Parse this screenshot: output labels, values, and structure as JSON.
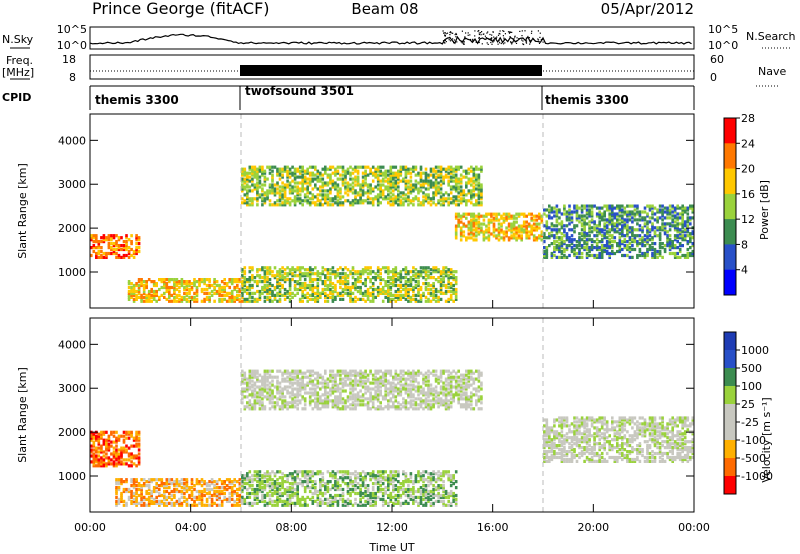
{
  "header": {
    "station": "Prince George (fitACF)",
    "beam": "Beam 08",
    "date": "05/Apr/2012"
  },
  "summary_panels": {
    "nsky_label": "N.Sky",
    "nsky_ticks": [
      "10^5",
      "10^0"
    ],
    "nsearch_label": "N.Search",
    "nsearch_ticks": [
      "10^5",
      "10^0"
    ],
    "freq_label_line1": "Freq.",
    "freq_label_line2": "[MHz]",
    "freq_ticks": [
      "18",
      "8"
    ],
    "nave_label": "Nave",
    "nave_ticks": [
      "60",
      "0"
    ],
    "cpid_label": "CPID",
    "cpid_segments": [
      {
        "name": "themis 3300",
        "start_h": 0,
        "end_h": 6
      },
      {
        "name": "twofsound 3501",
        "start_h": 6,
        "end_h": 18
      },
      {
        "name": "themis 3300",
        "start_h": 18,
        "end_h": 24
      }
    ]
  },
  "chart_data": [
    {
      "type": "heatmap",
      "name": "power",
      "ylabel": "Slant Range [km]",
      "ylim": [
        180,
        4600
      ],
      "yticks": [
        "1000",
        "2000",
        "3000",
        "4000"
      ],
      "xlim_h": [
        0,
        24
      ],
      "colorbar_label": "Power [dB]",
      "colorbar_ticks": [
        "4",
        "8",
        "12",
        "16",
        "20",
        "24",
        "28"
      ],
      "colors": [
        "#0000ff",
        "#2850c8",
        "#3c8c50",
        "#9ad23c",
        "#ffc800",
        "#ff7800",
        "#ff0000"
      ],
      "features": [
        {
          "h0": 0.0,
          "h1": 2.0,
          "r0": 1300,
          "r1": 1800,
          "level": 5
        },
        {
          "h0": 1.5,
          "h1": 6.0,
          "r0": 300,
          "r1": 800,
          "level": 4
        },
        {
          "h0": 6.0,
          "h1": 14.5,
          "r0": 300,
          "r1": 1100,
          "level": 3
        },
        {
          "h0": 6.0,
          "h1": 15.5,
          "r0": 2500,
          "r1": 3400,
          "level": 3
        },
        {
          "h0": 14.5,
          "h1": 18.0,
          "r0": 1700,
          "r1": 2300,
          "level": 4
        },
        {
          "h0": 18.0,
          "h1": 24.0,
          "r0": 1300,
          "r1": 2500,
          "level": 2
        }
      ]
    },
    {
      "type": "heatmap",
      "name": "velocity",
      "ylabel": "Slant Range [km]",
      "ylim": [
        180,
        4600
      ],
      "yticks": [
        "1000",
        "2000",
        "3000",
        "4000"
      ],
      "xlim_h": [
        0,
        24
      ],
      "xticks": [
        "00:00",
        "04:00",
        "08:00",
        "12:00",
        "16:00",
        "20:00",
        "00:00"
      ],
      "xlabel": "Time UT",
      "colorbar_label": "Velocity [m s⁻¹]",
      "colorbar_ticks": [
        "-1000",
        "-500",
        "-100",
        "-25",
        "25",
        "100",
        "500",
        "1000"
      ],
      "colors": [
        "#ff0000",
        "#ff6a00",
        "#ffb000",
        "#c8c8c0",
        "#c8c8c0",
        "#9ad23c",
        "#3c8c50",
        "#2850c8",
        "#1e3cb4"
      ],
      "features": [
        {
          "h0": 0.0,
          "h1": 2.0,
          "r0": 1200,
          "r1": 2000,
          "level": "-500"
        },
        {
          "h0": 1.0,
          "h1": 6.0,
          "r0": 300,
          "r1": 900,
          "level": "-100"
        },
        {
          "h0": 6.0,
          "h1": 14.5,
          "r0": 300,
          "r1": 1100,
          "level": "100"
        },
        {
          "h0": 6.0,
          "h1": 15.5,
          "r0": 2500,
          "r1": 3400,
          "level": "25"
        },
        {
          "h0": 18.0,
          "h1": 24.0,
          "r0": 1300,
          "r1": 2300,
          "level": "25"
        }
      ]
    }
  ]
}
